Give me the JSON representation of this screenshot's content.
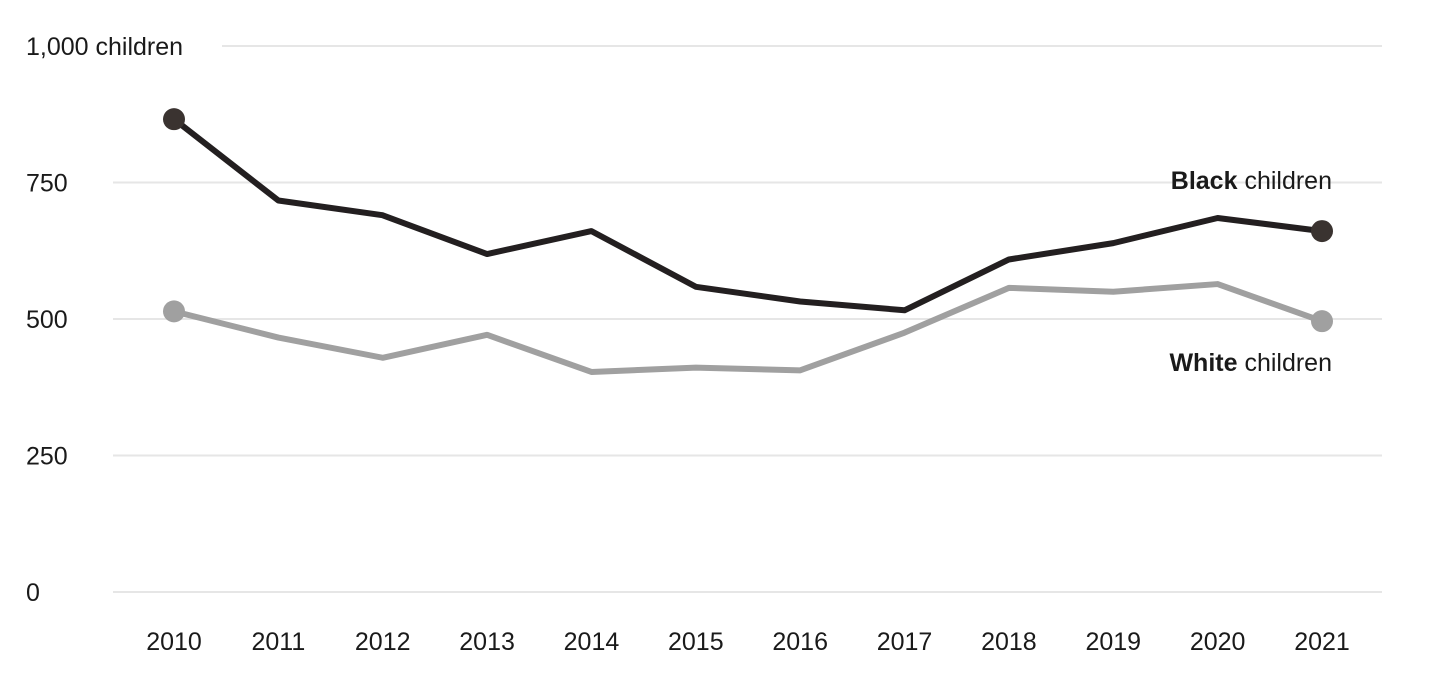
{
  "chart_data": {
    "type": "line",
    "title": "",
    "xlabel": "",
    "ylabel": "",
    "x": [
      "2010",
      "2011",
      "2012",
      "2013",
      "2014",
      "2015",
      "2016",
      "2017",
      "2018",
      "2019",
      "2020",
      "2021"
    ],
    "ylim": [
      0,
      1000
    ],
    "yticks": [
      0,
      250,
      500,
      750,
      1000
    ],
    "ytick_labels": [
      "0",
      "250",
      "500",
      "750",
      "1,000 children"
    ],
    "grid": true,
    "series": [
      {
        "key": "black",
        "label_bold": "Black",
        "label_rest": " children",
        "color": "#231f20",
        "marker_color": "#3a3330",
        "values": [
          866,
          717,
          690,
          619,
          661,
          559,
          532,
          516,
          609,
          639,
          685,
          661
        ]
      },
      {
        "key": "white",
        "label_bold": "White",
        "label_rest": " children",
        "color": "#a0a0a0",
        "marker_color": "#a0a0a0",
        "values": [
          514,
          466,
          429,
          471,
          403,
          411,
          406,
          475,
          557,
          550,
          564,
          496
        ]
      }
    ]
  }
}
